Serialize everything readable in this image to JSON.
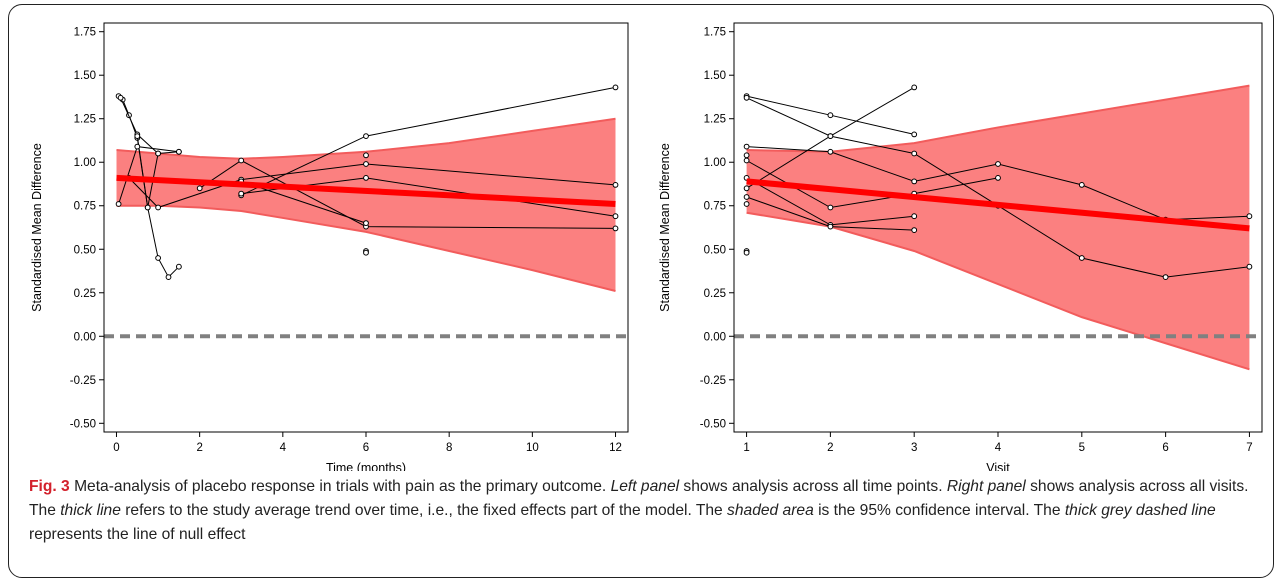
{
  "caption": {
    "label": "Fig. 3",
    "runs": [
      {
        "text": " Meta-analysis of placebo response in trials with pain as the primary outcome. ",
        "italic": false
      },
      {
        "text": "Left panel",
        "italic": true
      },
      {
        "text": " shows analysis across all time points. ",
        "italic": false
      },
      {
        "text": "Right panel",
        "italic": true
      },
      {
        "text": " shows analysis across all visits. The ",
        "italic": false
      },
      {
        "text": "thick line",
        "italic": true
      },
      {
        "text": " refers to the study average trend over time, i.e., the fixed effects part of the model. The ",
        "italic": false
      },
      {
        "text": "shaded area",
        "italic": true
      },
      {
        "text": " is the 95% confidence interval. The ",
        "italic": false
      },
      {
        "text": "thick grey dashed line",
        "italic": true
      },
      {
        "text": " represents the line of null effect",
        "italic": false
      }
    ]
  },
  "colors": {
    "band": "#fb8080",
    "band_edge": "#f25c5c",
    "trend": "#ff0000",
    "null_line": "#808080",
    "study_line": "#000000"
  },
  "chart_data": [
    {
      "type": "line",
      "xlabel": "Time (months)",
      "ylabel": "Standardised Mean Difference",
      "xlim": [
        -0.3,
        12.3
      ],
      "ylim": [
        -0.55,
        1.8
      ],
      "xticks": [
        0,
        2,
        4,
        6,
        8,
        10,
        12
      ],
      "yticks": [
        -0.5,
        -0.25,
        0.0,
        0.25,
        0.5,
        0.75,
        1.0,
        1.25,
        1.5,
        1.75
      ],
      "ytick_labels": [
        "-0.50",
        "-0.25",
        "0.00",
        "0.25",
        "0.50",
        "0.75",
        "1.00",
        "1.25",
        "1.50",
        "1.75"
      ],
      "trend": {
        "x": [
          0,
          12
        ],
        "y": [
          0.91,
          0.76
        ]
      },
      "ci_band": {
        "x": [
          0,
          1,
          2,
          3,
          4,
          6,
          8,
          10,
          12
        ],
        "upper": [
          1.07,
          1.05,
          1.03,
          1.02,
          1.03,
          1.06,
          1.11,
          1.18,
          1.25
        ],
        "lower": [
          0.75,
          0.75,
          0.74,
          0.72,
          0.68,
          0.6,
          0.49,
          0.38,
          0.26
        ]
      },
      "null_line": 0,
      "studies": [
        {
          "x": [
            0.05,
            0.15,
            0.3,
            0.5,
            0.75,
            1.0,
            1.25,
            1.5
          ],
          "y": [
            1.38,
            1.36,
            1.27,
            1.14,
            0.74,
            0.45,
            0.34,
            0.4
          ]
        },
        {
          "x": [
            0.1,
            0.5,
            1.0
          ],
          "y": [
            1.37,
            1.16,
            1.05
          ]
        },
        {
          "x": [
            0.5,
            0.75,
            1.0,
            1.5
          ],
          "y": [
            1.15,
            0.74,
            1.05,
            1.06
          ]
        },
        {
          "x": [
            0.05,
            0.5,
            1.5
          ],
          "y": [
            0.76,
            1.09,
            1.06
          ]
        },
        {
          "x": [
            0.3,
            1.0,
            3.0,
            6.0,
            12.0
          ],
          "y": [
            0.91,
            0.74,
            0.9,
            0.99,
            0.87
          ]
        },
        {
          "x": [
            2.0,
            3.0,
            6.0,
            12.0
          ],
          "y": [
            0.85,
            1.01,
            0.63,
            0.62
          ]
        },
        {
          "x": [
            3.0,
            6.0,
            12.0
          ],
          "y": [
            0.81,
            1.15,
            1.43
          ]
        },
        {
          "x": [
            3.0,
            6.0,
            12.0
          ],
          "y": [
            0.82,
            0.91,
            0.69
          ]
        },
        {
          "x": [
            3.0,
            6.0
          ],
          "y": [
            0.89,
            0.65
          ]
        },
        {
          "x": [
            6.0
          ],
          "y": [
            1.04
          ]
        },
        {
          "x": [
            6.0
          ],
          "y": [
            0.49
          ]
        },
        {
          "x": [
            6.0
          ],
          "y": [
            0.48
          ]
        }
      ]
    },
    {
      "type": "line",
      "xlabel": "Visit",
      "ylabel": "Standardised Mean Difference",
      "xlim": [
        0.85,
        7.15
      ],
      "ylim": [
        -0.55,
        1.8
      ],
      "xticks": [
        1,
        2,
        3,
        4,
        5,
        6,
        7
      ],
      "yticks": [
        -0.5,
        -0.25,
        0.0,
        0.25,
        0.5,
        0.75,
        1.0,
        1.25,
        1.5,
        1.75
      ],
      "ytick_labels": [
        "-0.50",
        "-0.25",
        "0.00",
        "0.25",
        "0.50",
        "0.75",
        "1.00",
        "1.25",
        "1.50",
        "1.75"
      ],
      "trend": {
        "x": [
          1,
          7
        ],
        "y": [
          0.89,
          0.62
        ]
      },
      "ci_band": {
        "x": [
          1,
          2,
          3,
          4,
          5,
          6,
          7
        ],
        "upper": [
          1.07,
          1.06,
          1.11,
          1.2,
          1.28,
          1.36,
          1.44
        ],
        "lower": [
          0.71,
          0.63,
          0.49,
          0.3,
          0.11,
          -0.04,
          -0.19
        ]
      },
      "null_line": 0,
      "studies": [
        {
          "x": [
            1,
            2,
            3
          ],
          "y": [
            1.38,
            1.27,
            1.16
          ]
        },
        {
          "x": [
            1,
            2,
            3,
            4,
            5,
            6,
            7
          ],
          "y": [
            1.37,
            1.15,
            1.05,
            0.75,
            0.45,
            0.34,
            0.4
          ]
        },
        {
          "x": [
            1,
            2,
            3,
            4,
            5,
            6,
            7
          ],
          "y": [
            1.09,
            1.06,
            0.89,
            0.99,
            0.87,
            0.67,
            0.69
          ]
        },
        {
          "x": [
            1,
            2,
            3
          ],
          "y": [
            0.85,
            1.15,
            1.43
          ]
        },
        {
          "x": [
            1,
            2,
            3,
            4
          ],
          "y": [
            1.01,
            0.74,
            0.82,
            0.91
          ]
        },
        {
          "x": [
            1,
            2,
            3
          ],
          "y": [
            0.91,
            0.64,
            0.69
          ]
        },
        {
          "x": [
            1,
            2,
            3
          ],
          "y": [
            0.8,
            0.63,
            0.61
          ]
        },
        {
          "x": [
            1
          ],
          "y": [
            1.04
          ]
        },
        {
          "x": [
            1
          ],
          "y": [
            0.76
          ]
        },
        {
          "x": [
            1
          ],
          "y": [
            0.49
          ]
        },
        {
          "x": [
            1
          ],
          "y": [
            0.48
          ]
        }
      ]
    }
  ]
}
